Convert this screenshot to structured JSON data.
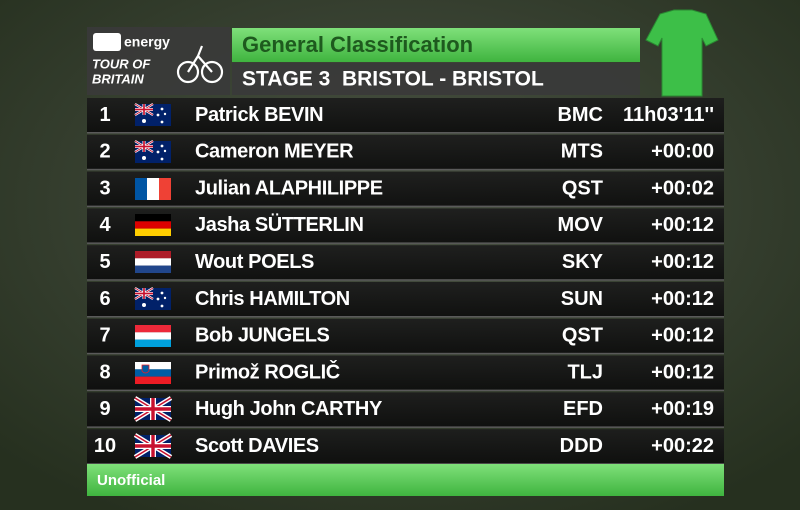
{
  "header": {
    "logo_sponsor": "energy",
    "logo_line1": "TOUR OF",
    "logo_line2": "BRITAIN",
    "title": "General Classification",
    "subtitle": "STAGE 3  BRISTOL - BRISTOL"
  },
  "table": {
    "rows": [
      [
        "1",
        "Patrick BEVIN",
        "BMC",
        "11h03'11''"
      ],
      [
        "2",
        "Cameron MEYER",
        "MTS",
        "+00:00"
      ],
      [
        "3",
        "Julian ALAPHILIPPE",
        "QST",
        "+00:02"
      ],
      [
        "4",
        "Jasha SÜTTERLIN",
        "MOV",
        "+00:12"
      ],
      [
        "5",
        "Wout POELS",
        "SKY",
        "+00:12"
      ],
      [
        "6",
        "Chris HAMILTON",
        "SUN",
        "+00:12"
      ],
      [
        "7",
        "Bob JUNGELS",
        "QST",
        "+00:12"
      ],
      [
        "8",
        "Primož ROGLIČ",
        "TLJ",
        "+00:12"
      ],
      [
        "9",
        "Hugh John CARTHY",
        "EFD",
        "+00:19"
      ],
      [
        "10",
        "Scott DAVIES",
        "DDD",
        "+00:22"
      ]
    ]
  },
  "footer": {
    "note": "Unofficial"
  }
}
